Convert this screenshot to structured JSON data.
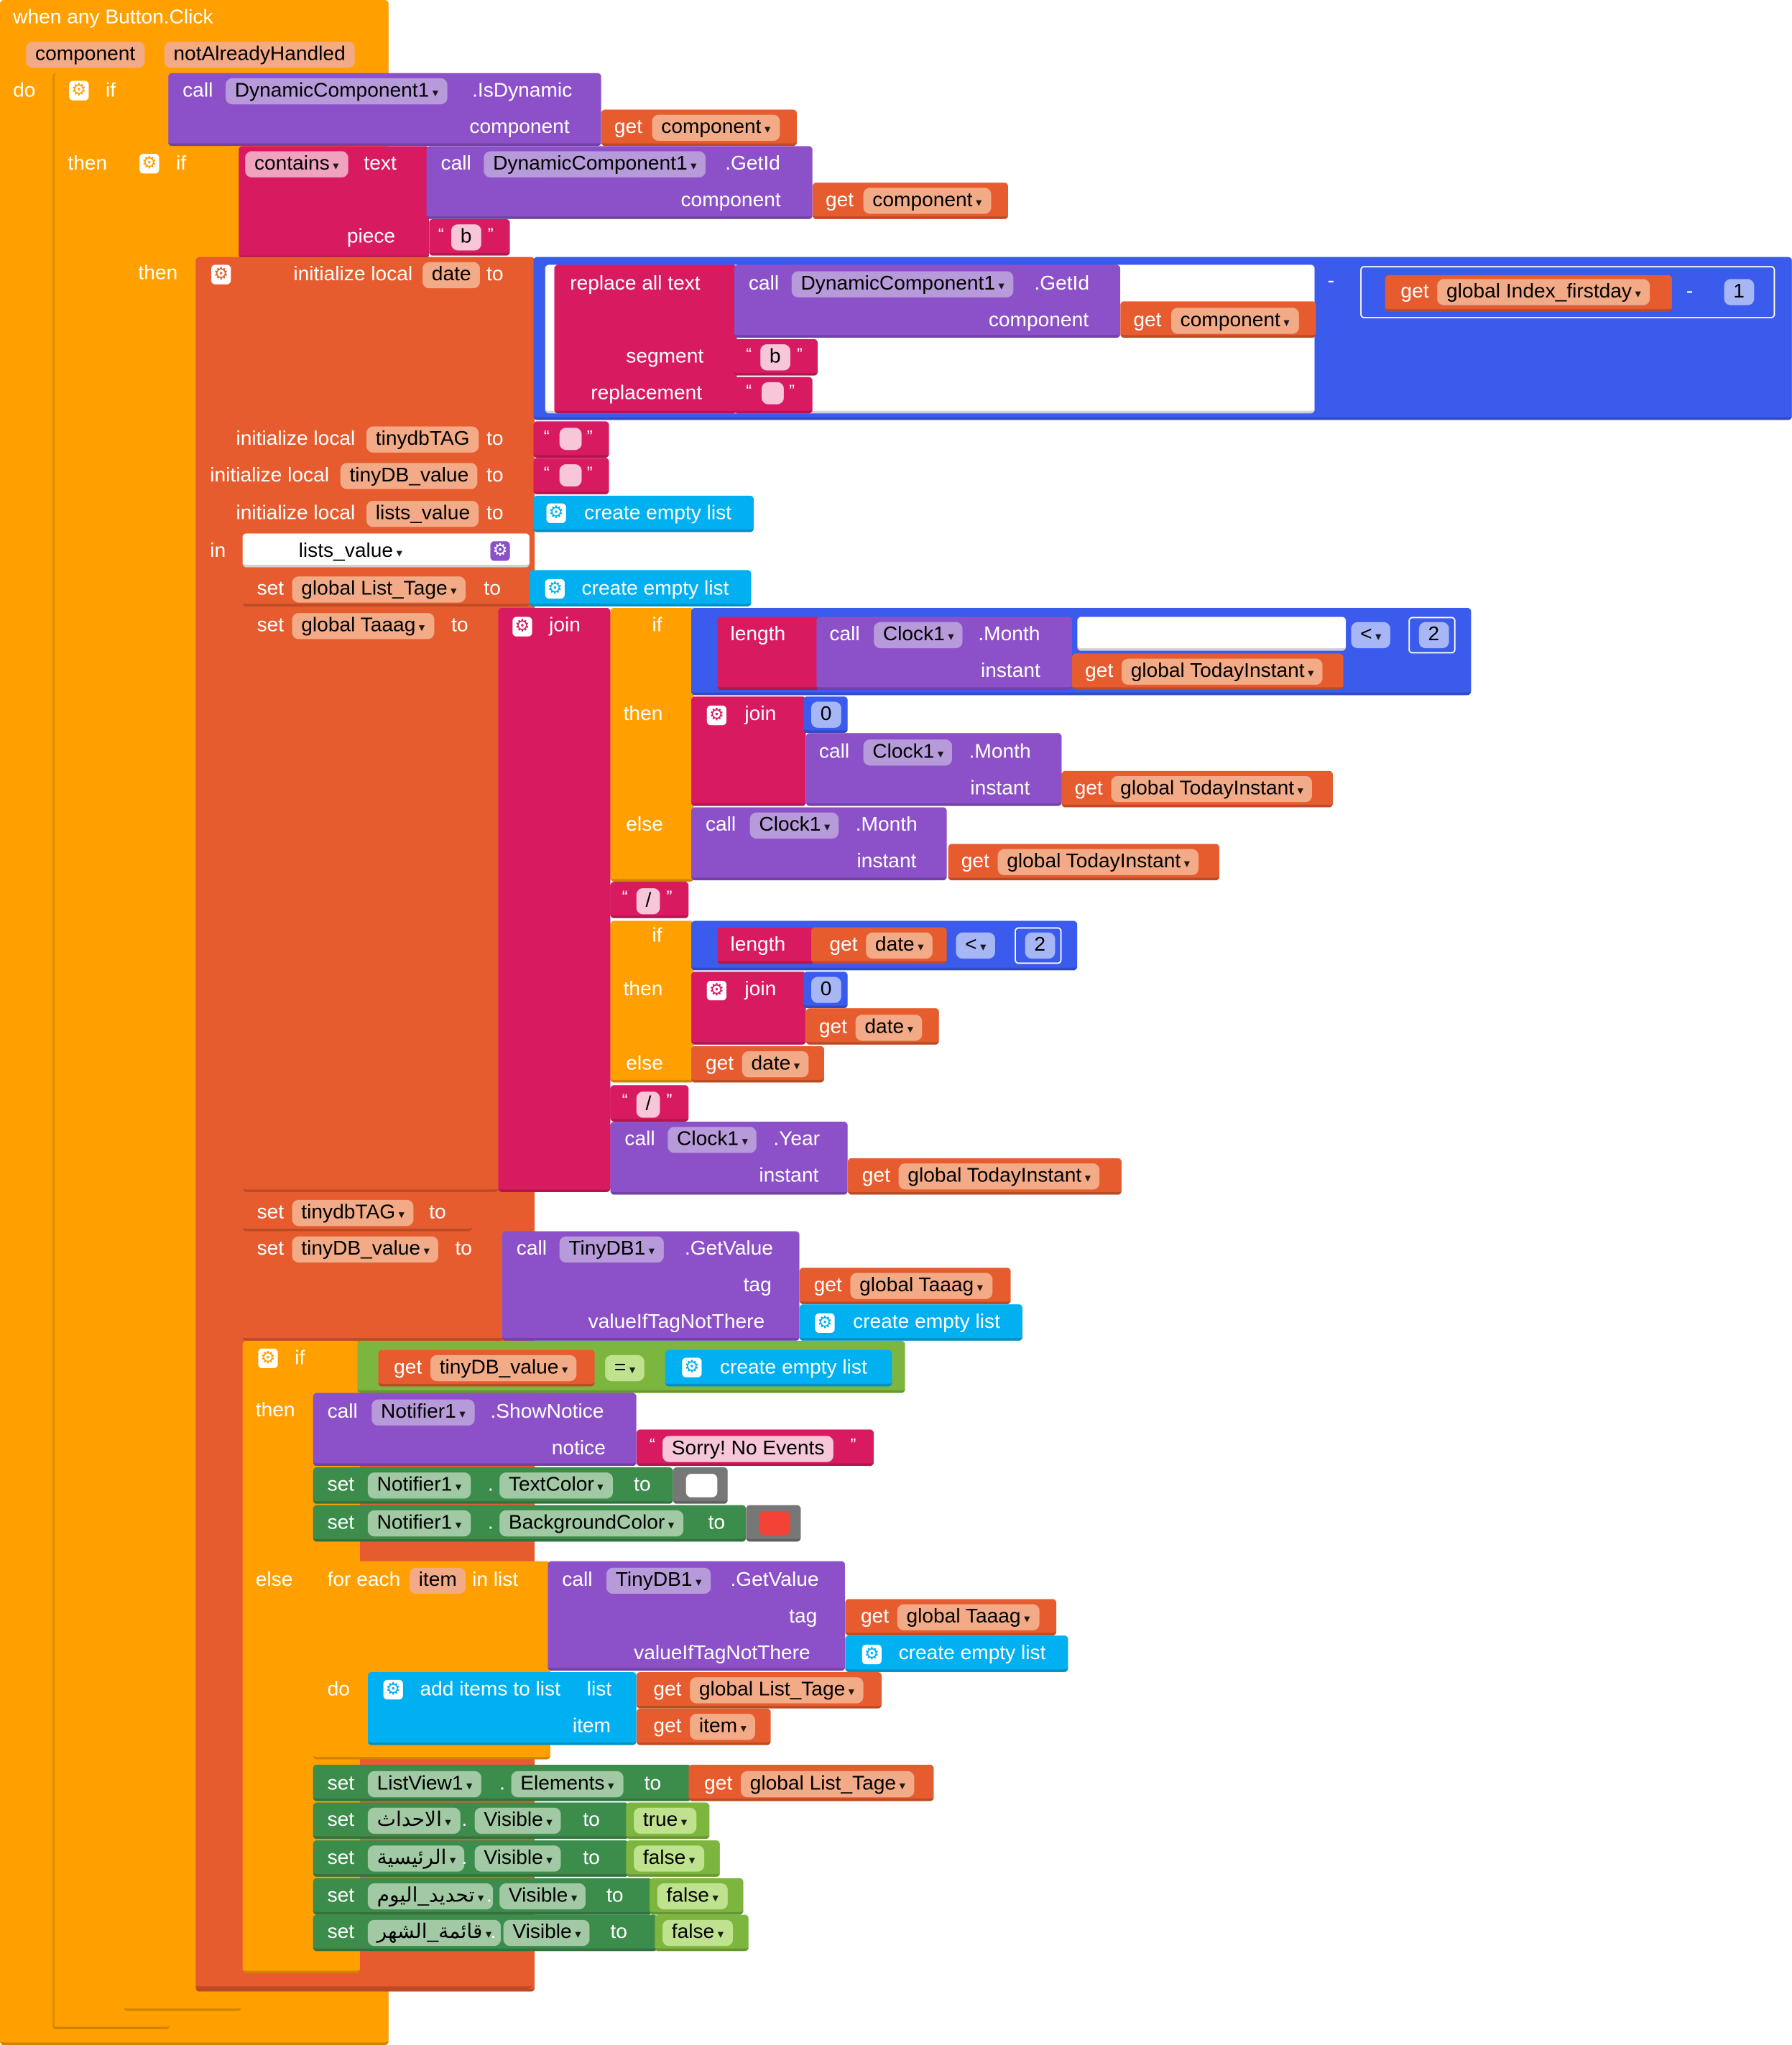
{
  "event": {
    "title": "when any Button.Click",
    "param1": "component",
    "param2": "notAlreadyHandled",
    "do_label": "do"
  },
  "kw": {
    "if": "if",
    "then": "then",
    "else": "else",
    "do": "do",
    "in": "in",
    "to": "to",
    "set": "set",
    "get": "get",
    "call": "call",
    "join": "join",
    "length": "length",
    "minus": "-",
    "dot": ".",
    "lt": "<",
    "eq": "=",
    "quote_open": "“",
    "quote_close": "”"
  },
  "row1": {
    "component": "DynamicComponent1",
    "method": ".IsDynamic",
    "arg": "component",
    "getvar": "component"
  },
  "row2": {
    "contains": "contains",
    "text": "text",
    "piece": "piece",
    "piece_val": "b",
    "component": "DynamicComponent1",
    "method": ".GetId",
    "arg": "component",
    "getvar": "component"
  },
  "initdate": {
    "label": "initialize local",
    "var": "date",
    "replace": "replace all text",
    "component": "DynamicComponent1",
    "method": ".GetId",
    "arg": "component",
    "getvar": "component",
    "segment": "segment",
    "segment_val": "b",
    "replacement": "replacement",
    "global_var": "global Index_firstday",
    "num": "1"
  },
  "inits": [
    {
      "label": "initialize local",
      "var": "tinydbTAG"
    },
    {
      "label": "initialize local",
      "var": "tinyDB_value"
    },
    {
      "label": "initialize local",
      "var": "lists_value",
      "value": "create empty list"
    }
  ],
  "in_var": "lists_value",
  "set_listtage": {
    "var": "global List_Tage",
    "value": "create empty list"
  },
  "set_taaag": {
    "var": "global Taaag"
  },
  "join1": {
    "clock": "Clock1",
    "month": ".Month",
    "year": ".Year",
    "instant": "instant",
    "today": "global TodayInstant",
    "num2": "2",
    "num0": "0",
    "slash": "/",
    "date": "date"
  },
  "set_tinydbtag": {
    "var": "tinydbTAG"
  },
  "set_tinydbvalue": {
    "var": "tinyDB_value",
    "component": "TinyDB1",
    "method": ".GetValue",
    "tag": "tag",
    "tagvar": "global Taaag",
    "notthere": "valueIfTagNotThere",
    "notthere_val": "create empty list"
  },
  "if2": {
    "var": "tinyDB_value",
    "eq_val": "create empty list"
  },
  "notifier": {
    "component": "Notifier1",
    "method": ".ShowNotice",
    "arg": "notice",
    "msg": "Sorry! No Events",
    "prop1": "TextColor",
    "prop2": "BackgroundColor",
    "color_white": "#ffffff",
    "color_red": "#f44336"
  },
  "foreach": {
    "label": "for each",
    "var": "item",
    "inlist": "in list",
    "component": "TinyDB1",
    "method": ".GetValue",
    "tag": "tag",
    "tagvar": "global Taaag",
    "notthere": "valueIfTagNotThere",
    "notthere_val": "create empty list",
    "add": "add items to list",
    "list": "list",
    "listvar": "global List_Tage",
    "item_label": "item",
    "item_var": "item"
  },
  "listview": {
    "component": "ListView1",
    "prop": "Elements",
    "getvar": "global List_Tage"
  },
  "visibles": [
    {
      "component": "الاحداث",
      "prop": "Visible",
      "value": "true"
    },
    {
      "component": "الرئيسية",
      "prop": "Visible",
      "value": "false"
    },
    {
      "component": "تحديد_اليوم",
      "prop": "Visible",
      "value": "false"
    },
    {
      "component": "قائمة_الشهر",
      "prop": "Visible",
      "value": "false"
    }
  ]
}
